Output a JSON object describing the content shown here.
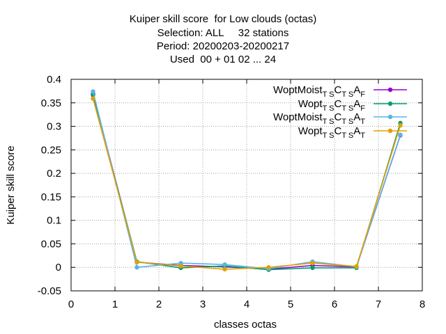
{
  "chart_data": {
    "type": "line",
    "title_lines": [
      "Kuiper skill score  for Low clouds (octas)",
      "Selection: ALL     32 stations",
      "Period: 20200203-20200217",
      "Used  00 + 01 02 ... 24"
    ],
    "xlabel": "classes octas",
    "ylabel": "Kuiper skill score",
    "xlim": [
      0,
      8
    ],
    "ylim": [
      -0.05,
      0.4
    ],
    "xticks": [
      "0",
      "1",
      "2",
      "3",
      "4",
      "5",
      "6",
      "7",
      "8"
    ],
    "yticks": [
      "-0.05",
      "0",
      "0.05",
      "0.1",
      "0.15",
      "0.2",
      "0.25",
      "0.3",
      "0.35",
      "0.4"
    ],
    "grid": true,
    "legend_position": "top-right",
    "x": [
      0.5,
      1.5,
      2.5,
      3.5,
      4.5,
      5.5,
      6.5,
      7.5
    ],
    "series": [
      {
        "name": "WoptMoist",
        "name_sub1": "T S",
        "name_mid": "C",
        "name_sub2": "T S",
        "name_mid2": "A",
        "name_sub3": "F",
        "color": "#9400d3",
        "values": [
          0.369,
          0.011,
          0.004,
          0.001,
          -0.004,
          0.004,
          0.001,
          0.281
        ]
      },
      {
        "name": "Wopt",
        "name_sub1": "T S",
        "name_mid": "C",
        "name_sub2": "T S",
        "name_mid2": "A",
        "name_sub3": "F",
        "color": "#009e73",
        "values": [
          0.366,
          0.012,
          -0.001,
          0.003,
          -0.005,
          -0.001,
          -0.001,
          0.307
        ]
      },
      {
        "name": "WoptMoist",
        "name_sub1": "T S",
        "name_mid": "C",
        "name_sub2": "T S",
        "name_mid2": "A",
        "name_sub3": "T",
        "color": "#56b4e9",
        "values": [
          0.374,
          0.0,
          0.009,
          0.006,
          -0.003,
          0.012,
          0.001,
          0.282
        ]
      },
      {
        "name": "Wopt",
        "name_sub1": "T S",
        "name_mid": "C",
        "name_sub2": "T S",
        "name_mid2": "A",
        "name_sub3": "T",
        "color": "#e69f00",
        "values": [
          0.359,
          0.011,
          0.003,
          -0.004,
          0.0,
          0.009,
          0.002,
          0.302
        ]
      }
    ]
  }
}
